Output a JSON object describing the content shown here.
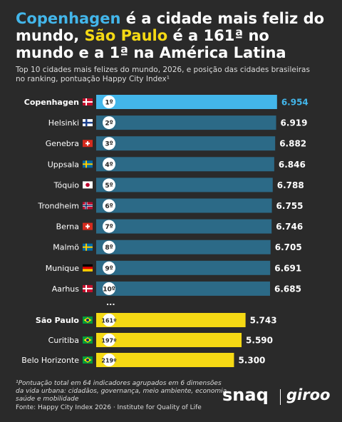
{
  "title_parts": [
    "Copenhagen",
    " é a cidade mais feliz do mundo, ",
    "São Paulo",
    " é a 161ª no mundo e a 1ª na América Latina"
  ],
  "subtitle": "Top 10 cidades mais felizes do mundo, 2026, e posição das cidades brasileiras no ranking, pontuação Happy City Index¹",
  "chart_data": {
    "type": "bar",
    "orientation": "horizontal",
    "categories": [
      "Copenhagen",
      "Helsinki",
      "Genebra",
      "Uppsala",
      "Tóquio",
      "Trondheim",
      "Berna",
      "Malmö",
      "Munique",
      "Aarhus",
      "São Paulo",
      "Curitiba",
      "Belo Horizonte"
    ],
    "ranks": [
      "1º",
      "2º",
      "3º",
      "4º",
      "5º",
      "6º",
      "7º",
      "8º",
      "9º",
      "10º",
      "161º",
      "197º",
      "219º"
    ],
    "values": [
      6.954,
      6.919,
      6.882,
      6.846,
      6.788,
      6.755,
      6.746,
      6.705,
      6.691,
      6.685,
      5.743,
      5.59,
      5.3
    ],
    "value_labels": [
      "6.954",
      "6.919",
      "6.882",
      "6.846",
      "6.788",
      "6.755",
      "6.746",
      "6.705",
      "6.691",
      "6.685",
      "5.743",
      "5.590",
      "5.300"
    ],
    "colors": [
      "#43b6ea",
      "#2c6a87",
      "#2c6a87",
      "#2c6a87",
      "#2c6a87",
      "#2c6a87",
      "#2c6a87",
      "#2c6a87",
      "#2c6a87",
      "#2c6a87",
      "#f5d914",
      "#f5d914",
      "#f5d914"
    ],
    "gap_label": "..."
  },
  "footnote": "¹Pontuação total em 64 indicadores agrupados em 6 dimensões da vida urbana: cidadãos, governança, meio ambiente, economia, saúde e mobilidade",
  "source": "Fonte: Happy City Index 2026 · Institute for Quality of Life",
  "logos": [
    "snaq",
    "giroo"
  ]
}
